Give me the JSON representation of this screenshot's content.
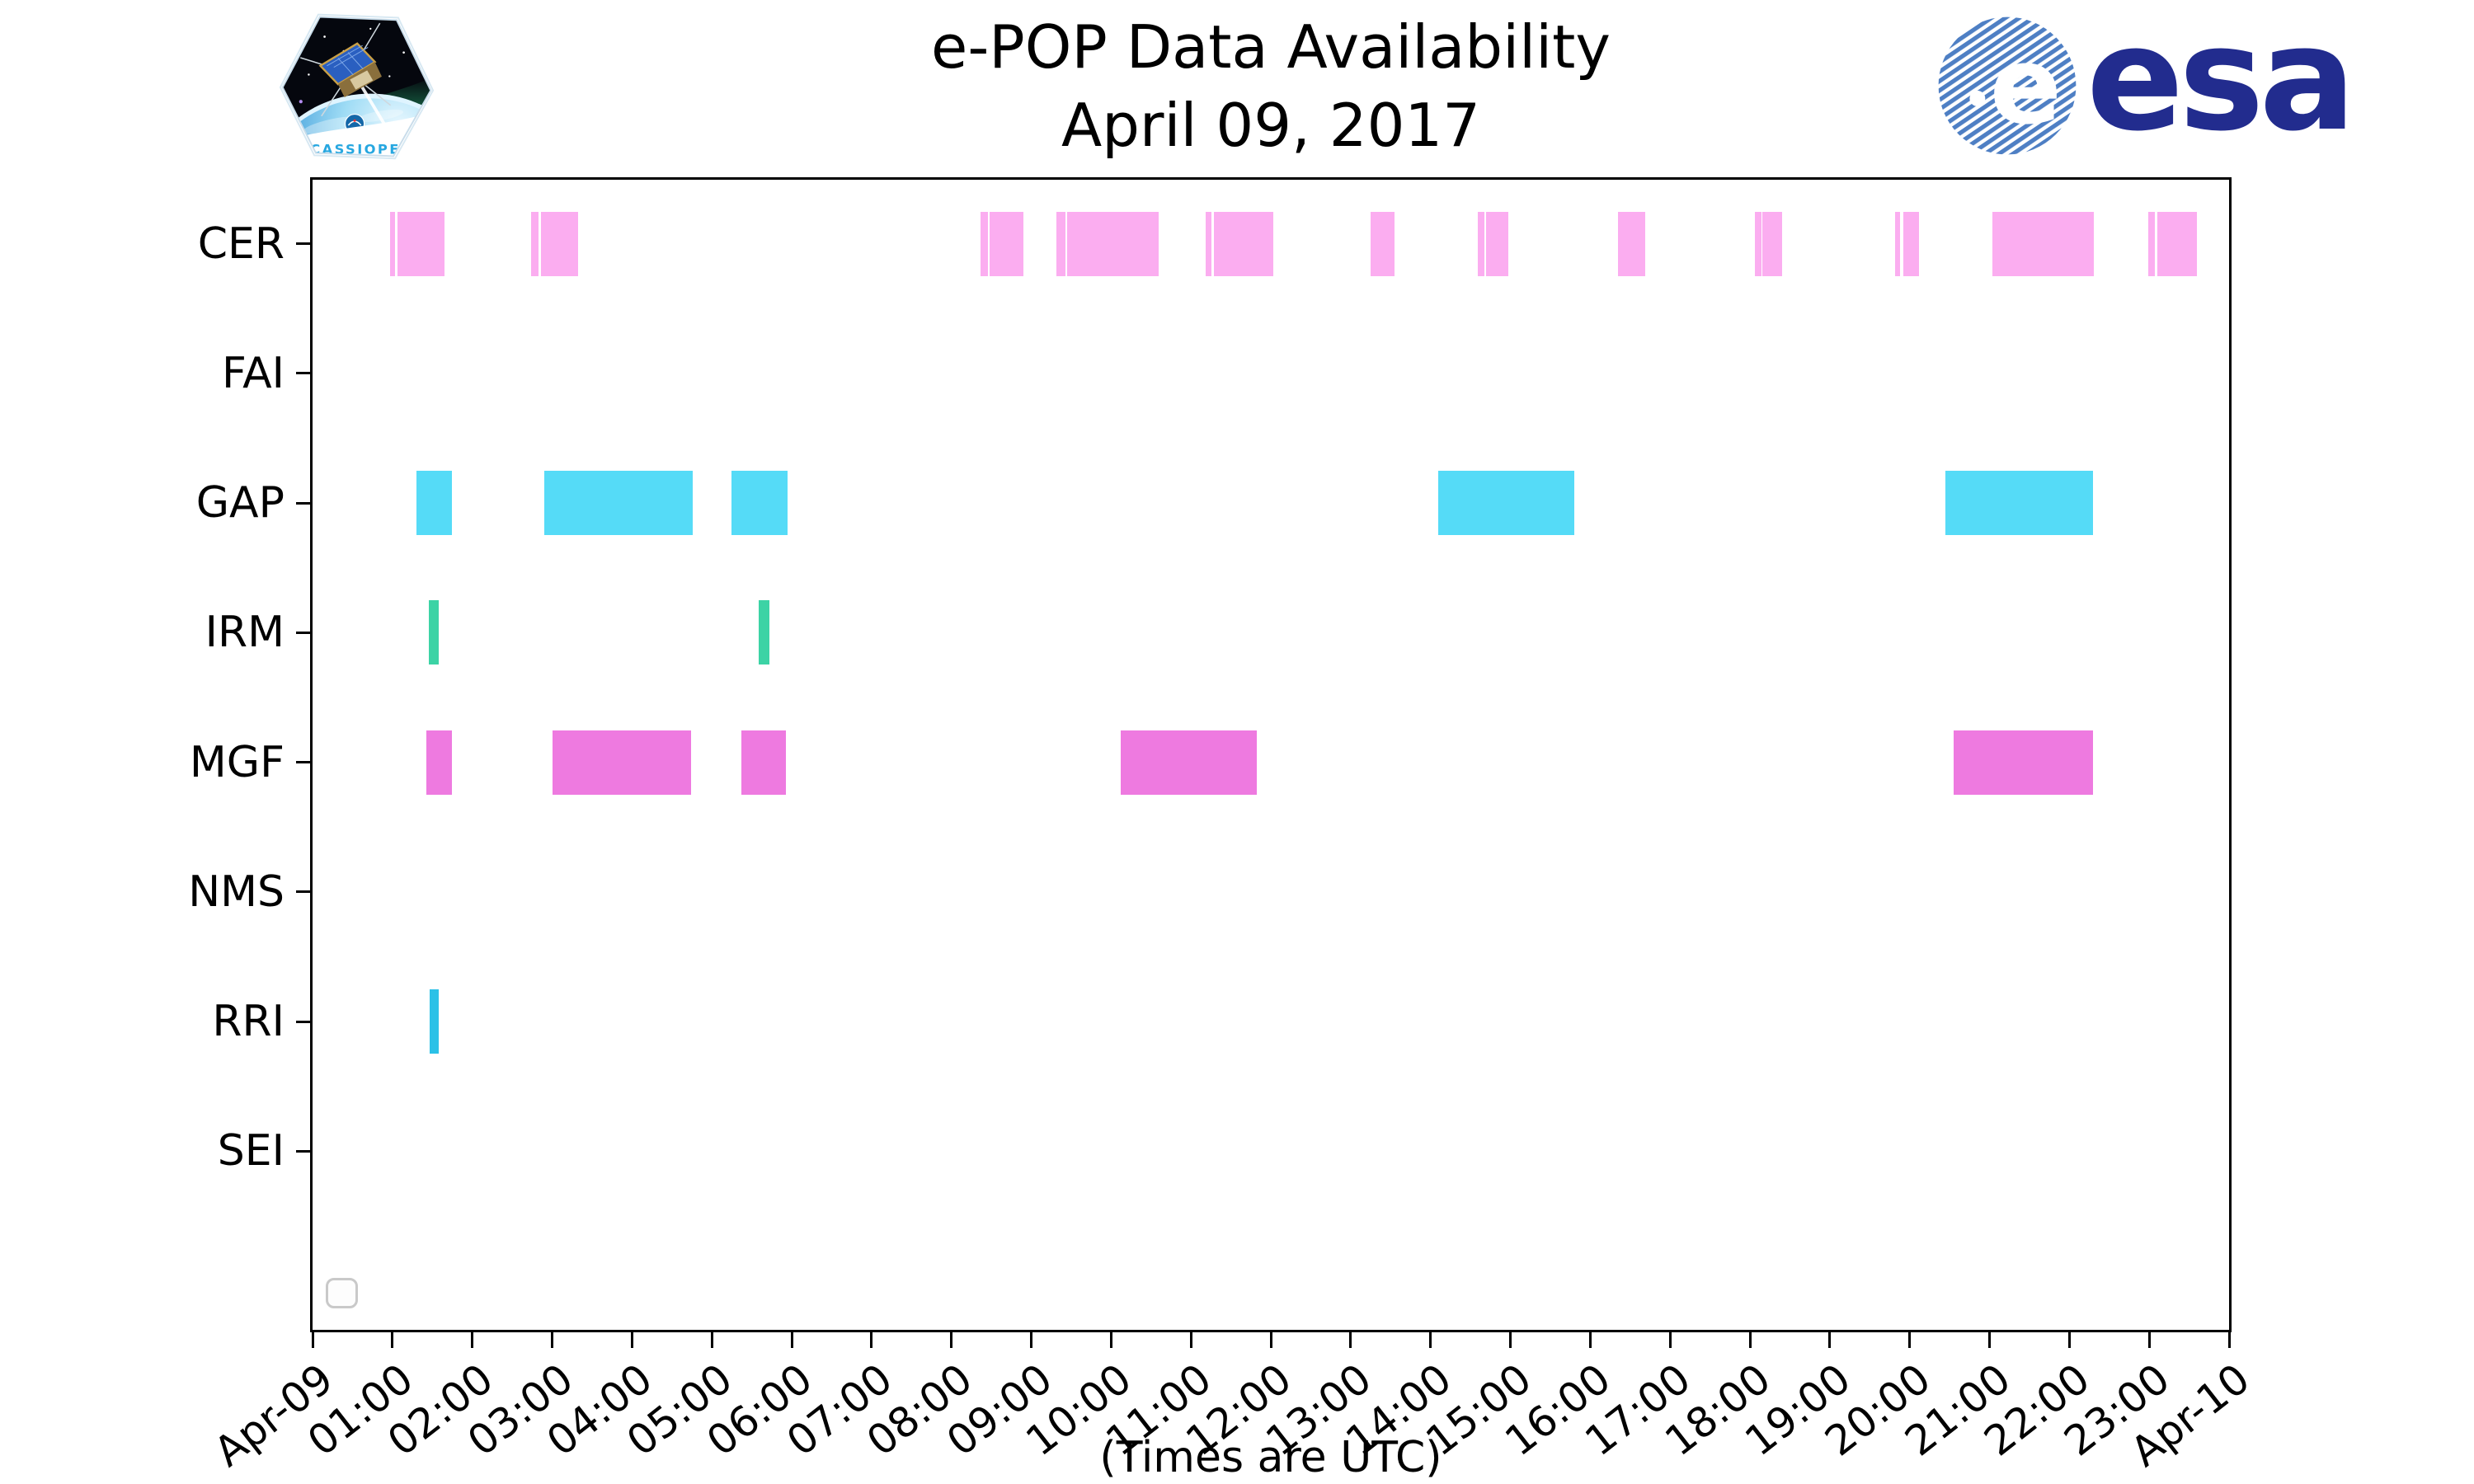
{
  "header": {
    "title_line1": "e-POP Data Availability",
    "title_line2": "April 09, 2017",
    "cassiope_badge_label": "CASSIOPE",
    "esa_logo_text": "esa",
    "esa_globe_letter": "e"
  },
  "colors": {
    "CER": "#FBADF0",
    "FAI": "#FBADF0",
    "GAP": "#55DBF7",
    "IRM": "#3CD3A5",
    "MGF": "#EE7AE0",
    "NMS": "#EE7AE0",
    "RRI": "#2BC1E7",
    "SEI": "#2BC1E7",
    "axis": "#000000",
    "esa_navy": "#222C8E",
    "esa_globe_blue": "#4E7FC4",
    "legend_border": "#c9c9c9"
  },
  "chart_data": {
    "type": "timeline",
    "title": "e-POP Data Availability",
    "subtitle": "April 09, 2017",
    "xlabel": "(Times are UTC)",
    "x_range_hours": [
      0,
      24
    ],
    "x_ticks": [
      "Apr-09",
      "01:00",
      "02:00",
      "03:00",
      "04:00",
      "05:00",
      "06:00",
      "07:00",
      "08:00",
      "09:00",
      "10:00",
      "11:00",
      "12:00",
      "13:00",
      "14:00",
      "15:00",
      "16:00",
      "17:00",
      "18:00",
      "19:00",
      "20:00",
      "21:00",
      "22:00",
      "23:00",
      "Apr-10"
    ],
    "instruments": [
      "CER",
      "FAI",
      "GAP",
      "IRM",
      "MGF",
      "NMS",
      "RRI",
      "SEI"
    ],
    "legend": {
      "visible": true,
      "entries": []
    },
    "series": [
      {
        "name": "CER",
        "color": "#FBADF0",
        "intervals": [
          [
            0.97,
            1.03
          ],
          [
            1.06,
            1.65
          ],
          [
            2.74,
            2.83
          ],
          [
            2.86,
            3.33
          ],
          [
            8.37,
            8.46
          ],
          [
            8.48,
            8.9
          ],
          [
            9.32,
            9.43
          ],
          [
            9.45,
            10.6
          ],
          [
            11.18,
            11.26
          ],
          [
            11.29,
            12.03
          ],
          [
            13.25,
            13.55
          ],
          [
            14.59,
            14.67
          ],
          [
            14.7,
            14.97
          ],
          [
            16.35,
            16.69
          ],
          [
            18.06,
            18.14
          ],
          [
            18.16,
            18.4
          ],
          [
            19.82,
            19.88
          ],
          [
            19.92,
            20.12
          ],
          [
            21.04,
            22.31
          ],
          [
            22.99,
            23.07
          ],
          [
            23.1,
            23.6
          ]
        ]
      },
      {
        "name": "FAI",
        "color": "#FBADF0",
        "intervals": []
      },
      {
        "name": "GAP",
        "color": "#55DBF7",
        "intervals": [
          [
            1.3,
            1.75
          ],
          [
            2.9,
            4.76
          ],
          [
            5.25,
            5.95
          ],
          [
            14.1,
            15.8
          ],
          [
            20.45,
            22.3
          ]
        ]
      },
      {
        "name": "IRM",
        "color": "#3CD3A5",
        "intervals": [
          [
            1.46,
            1.58
          ],
          [
            5.59,
            5.72
          ]
        ]
      },
      {
        "name": "MGF",
        "color": "#EE7AE0",
        "intervals": [
          [
            1.43,
            1.75
          ],
          [
            3.0,
            4.74
          ],
          [
            5.37,
            5.93
          ],
          [
            10.12,
            11.82
          ],
          [
            20.55,
            22.3
          ]
        ]
      },
      {
        "name": "NMS",
        "color": "#EE7AE0",
        "intervals": []
      },
      {
        "name": "RRI",
        "color": "#2BC1E7",
        "intervals": [
          [
            1.47,
            1.58
          ]
        ]
      },
      {
        "name": "SEI",
        "color": "#2BC1E7",
        "intervals": []
      }
    ]
  }
}
